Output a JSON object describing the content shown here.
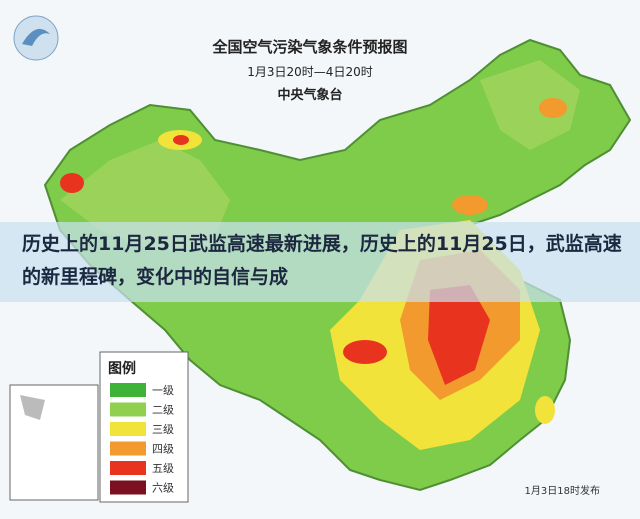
{
  "map": {
    "title": "全国空气污染气象条件预报图",
    "time_range": "1月3日20时—4日20时",
    "issuer": "中央气象台",
    "legend": {
      "title": "图例",
      "items": [
        {
          "label": "一级",
          "color": "#3fb337"
        },
        {
          "label": "二级",
          "color": "#8fd14f"
        },
        {
          "label": "三级",
          "color": "#f2e33a"
        },
        {
          "label": "四级",
          "color": "#f29a2e"
        },
        {
          "label": "五级",
          "color": "#e8341f"
        },
        {
          "label": "六级",
          "color": "#7a1020"
        }
      ]
    },
    "issued": "1月3日18时发布"
  },
  "caption": "历史上的11月25日武监高速最新进展，历史上的11月25日，武监高速的新里程碑，变化中的自信与成"
}
